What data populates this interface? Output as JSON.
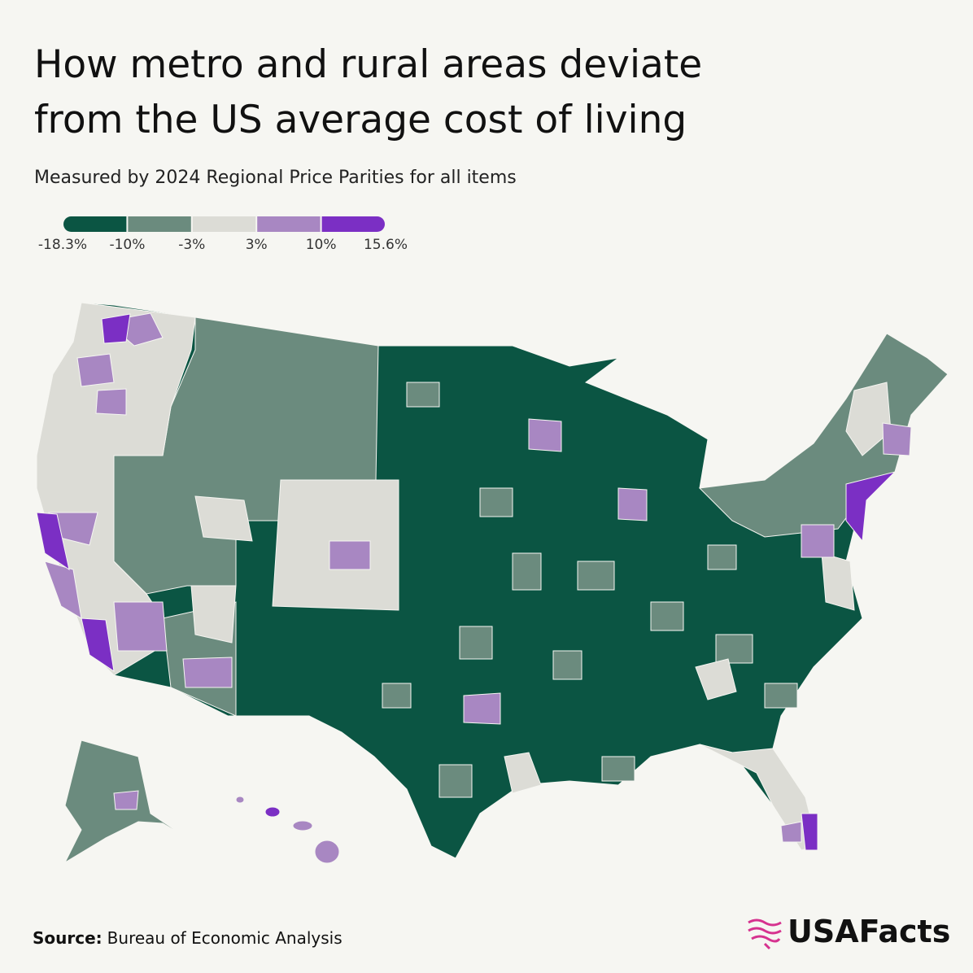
{
  "header": {
    "title_lines": [
      "How metro and rural areas deviate",
      "from the US average cost of living"
    ],
    "subtitle": "Measured by 2024 Regional Price Parities for all items"
  },
  "legend": {
    "colors": [
      "#0b5543",
      "#6b8b7e",
      "#dcdcd6",
      "#a887c2",
      "#7b2fc4"
    ],
    "ticks": [
      {
        "value": -18.3,
        "label": "-18.3%"
      },
      {
        "value": -10,
        "label": "-10%"
      },
      {
        "value": -3,
        "label": "-3%"
      },
      {
        "value": 3,
        "label": "3%"
      },
      {
        "value": 10,
        "label": "10%"
      },
      {
        "value": 15.6,
        "label": "15.6%"
      }
    ]
  },
  "footer": {
    "source_label": "Source:",
    "source": "Bureau of Economic Analysis",
    "brand": "USAFacts"
  }
}
